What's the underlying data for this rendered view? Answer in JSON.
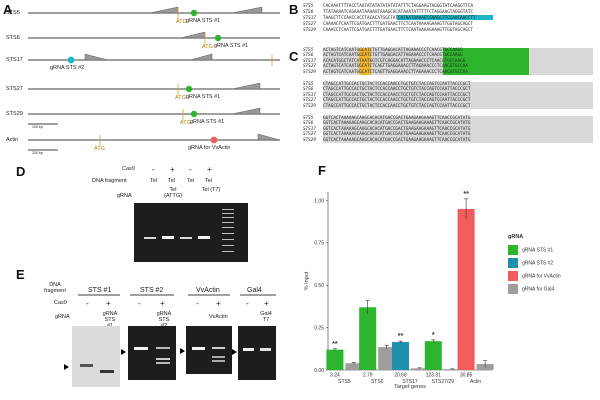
{
  "panels": {
    "A": "A",
    "B": "B",
    "C": "C",
    "D": "D",
    "E": "E",
    "F": "F"
  },
  "panelA": {
    "rows": [
      {
        "name": "STS5",
        "grna": "gRNA STS #1",
        "atg": "ATG"
      },
      {
        "name": "STS6",
        "grna": "gRNA STS #1",
        "atg": "ATG"
      },
      {
        "name": "STS17",
        "grna": "gRNA STS #2",
        "atg": ""
      },
      {
        "name": "STS27",
        "grna": "gRNA STS #1",
        "atg": "ATG"
      },
      {
        "name": "STS29",
        "grna": "gRNA STS #1",
        "atg": "ATG"
      },
      {
        "name": "Actin",
        "grna": "gRNA for VvActin",
        "atg": "ATG"
      }
    ],
    "scale1": "100 bp",
    "scale2": "200 bp"
  },
  "panelB": {
    "lines": [
      {
        "name": "STS5",
        "seq": "CACAAATTTTACCTAATATATATATATATATTTCTAGGAAGTAGGGTATCAAGGTTCA"
      },
      {
        "name": "STS6",
        "seq": "TTATAAAATCAGAAATAAAAATAAAGCACATAAATATTTTTCTAGGAAGTAGGGTATC"
      },
      {
        "name": "STS17",
        "seq": "TAAGCTTCCAACCACCTACACATGGCTATCATAATAAAAGTGAAGCTTCCAACAACCTT"
      },
      {
        "name": "STS27",
        "seq": "CAAAACTCAATTCGATGACTTTGATGAACTTCTCAATAAAAGAAAGTTGGTAGCAGCT"
      },
      {
        "name": "STS29",
        "seq": "CAAACCTCAATTCGATGACTTTGATGAACTTCTCAATAAAAGAAAGTTGGTAGCAGCT"
      }
    ]
  },
  "panelC": {
    "block1": [
      {
        "name": "STS5",
        "seq": "ACTAGTCATCAATGGCATCTGTTGAGGACATTAGAAACCCTCAACGTGCCAAGG"
      },
      {
        "name": "STS6",
        "seq": "ACTAGTCATCAATGGCATCTGTTGAGGACATTAGAAACCCTCAACGTGCCAAGG"
      },
      {
        "name": "STS17",
        "seq": "ACACATGGCTATCATAATGGTCGTCAGGACATTAGAAACCCTCAACGTGCCAAGG"
      },
      {
        "name": "STS27",
        "seq": "ACTAGTCATCAATGGCATCTCAGTTGAGGAAACCTTAGAAACCCTCAACGTGCCAA"
      },
      {
        "name": "STS29",
        "seq": "ACTAGTCATCAATGGCATCTCAGTTGAGGAAACCTTAGAAACCCTCAACGTGCCAA"
      }
    ],
    "block2": [
      {
        "name": "STS5",
        "seq": "CTAGCCATTGCCACTGCTACTCCACCAACCTGCTGTCTACCAGTCCAATTACCCGCT"
      },
      {
        "name": "STS6",
        "seq": "CTAGCCATTGCCACTGCTACTCCACCAACCTGCTGTCTACCAGTCCAATTACCCGCT"
      },
      {
        "name": "STS17",
        "seq": "CTAGCCATTGCCACTGCTACTCCACCAACCTGCTGTCTACCAGTCCAATTACCCGCT"
      },
      {
        "name": "STS27",
        "seq": "CTAGCCATTGCCACTGCTACTCCACCAACCTGCTGTCTACCAGTCCAATTACCCGCT"
      },
      {
        "name": "STS29",
        "seq": "CTAGCCATTGCCACTGCTACTCCACCAACCTGCTGTCTACCAGTCCAATTACCCGCT"
      }
    ],
    "block3": [
      {
        "name": "STS5",
        "seq": "GGTCACTAAAAAGCAAGCACACATGACCGACTGAAGAAGAAAGTTCAACCGCATATG"
      },
      {
        "name": "STS6",
        "seq": "GGTCACTAAAAAGCAAGCACACATGACCGACTGAAGAAGAAAGTTCAACCGCATATG"
      },
      {
        "name": "STS17",
        "seq": "GGTCACTAAAAAGCAAGCACACATGACCGACTGAAGAAGAAAGTTCAACCGCATATG"
      },
      {
        "name": "STS27",
        "seq": "GGTCACTAAAAAGCAAGCACACATGACCGACTGAAGAAGAAAGTTCAACCGCATATG"
      },
      {
        "name": "STS29",
        "seq": "GGTCACTAAAAAGCAAGCACACATGACCGACTGAAGAAGAAAGTTCAACCGCATATG"
      }
    ]
  },
  "panelD": {
    "cas9_label": "Cas9",
    "dna_label": "DNA fragment",
    "grna_label": "gRNA",
    "lanes": [
      {
        "cas9": "-",
        "dna": "Tel",
        "grna": ""
      },
      {
        "cas9": "+",
        "dna": "Tel",
        "grna": "Tel (ATTG)"
      },
      {
        "cas9": "-",
        "dna": "Tel",
        "grna": ""
      },
      {
        "cas9": "+",
        "dna": "Tel",
        "grna": "Tel (T7)"
      }
    ]
  },
  "panelE": {
    "dna_label": "DNA fragment",
    "cas9_label": "Cas9",
    "grna_label": "gRNA",
    "groups": [
      {
        "title": "STS #1",
        "minus": "-",
        "plus": "+",
        "grna": "gRNA STS #1"
      },
      {
        "title": "STS #2",
        "minus": "-",
        "plus": "+",
        "grna": "gRNA STS #2"
      },
      {
        "title": "VvActin",
        "minus": "-",
        "plus": "+",
        "grna": "VvActin"
      },
      {
        "title": "Gal4",
        "minus": "-",
        "plus": "+",
        "grna": "Gal4 T7"
      }
    ]
  },
  "chart_data": {
    "type": "bar",
    "title": "",
    "xlabel": "Target genes",
    "ylabel": "% Input",
    "ylim": [
      0,
      1.05
    ],
    "yticks": [
      0.0,
      0.25,
      0.5,
      0.75,
      1.0
    ],
    "legend_title": "gRNA",
    "categories": [
      "STS5",
      "STS6",
      "STS17",
      "STS27/29",
      "Actin"
    ],
    "bar_labels": [
      "3.24",
      "2.79",
      "20.68",
      "123.31",
      "30.85"
    ],
    "significance": [
      "**",
      "",
      "**",
      "*",
      "**"
    ],
    "bars": [
      {
        "category": "STS5",
        "series": "gRNA STS #1",
        "value": 0.12,
        "error": 0.005
      },
      {
        "category": "STS5",
        "series": "gRNA for Gal4",
        "value": 0.04,
        "error": 0.005
      },
      {
        "category": "STS6",
        "series": "gRNA STS #1",
        "value": 0.37,
        "error": 0.04
      },
      {
        "category": "STS6",
        "series": "gRNA for Gal4",
        "value": 0.135,
        "error": 0.01
      },
      {
        "category": "STS17",
        "series": "gRNA STS #2",
        "value": 0.165,
        "error": 0.005
      },
      {
        "category": "STS17",
        "series": "gRNA for Gal4",
        "value": 0.01,
        "error": 0.003
      },
      {
        "category": "STS27/29",
        "series": "gRNA STS #1",
        "value": 0.17,
        "error": 0.008
      },
      {
        "category": "STS27/29",
        "series": "gRNA for Gal4",
        "value": 0.005,
        "error": 0.002
      },
      {
        "category": "Actin",
        "series": "gRNA for VvActin",
        "value": 0.95,
        "error": 0.06
      },
      {
        "category": "Actin",
        "series": "gRNA for Gal4",
        "value": 0.035,
        "error": 0.02
      }
    ],
    "legend": [
      {
        "name": "gRNA STS #1",
        "color": "#2db52d"
      },
      {
        "name": "gRNA STS #2",
        "color": "#1f8fad"
      },
      {
        "name": "gRNA for VvActin",
        "color": "#f25c5c"
      },
      {
        "name": "gRNA for Gal4",
        "color": "#9e9e9e"
      }
    ]
  }
}
